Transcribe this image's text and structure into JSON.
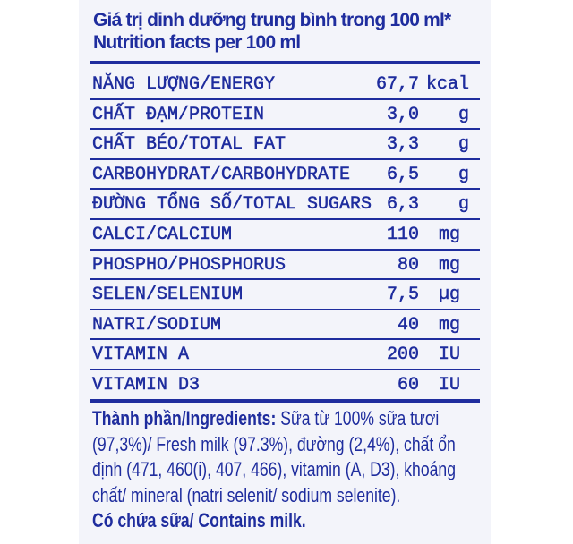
{
  "header": {
    "title_vi": "Giá trị dinh dưỡng trung bình trong 100 ml*",
    "title_en": "Nutrition facts per 100 ml"
  },
  "nutrients": [
    {
      "label": "NĂNG LƯỢNG/ENERGY",
      "value": "67,7",
      "unit": "kcal"
    },
    {
      "label": "CHẤT ĐẠM/PROTEIN",
      "value": "3,0",
      "unit": "g"
    },
    {
      "label": "CHẤT BÉO/TOTAL FAT",
      "value": "3,3",
      "unit": "g"
    },
    {
      "label": "CARBOHYDRAT/CARBOHYDRATE",
      "value": "6,5",
      "unit": "g"
    },
    {
      "label": "ĐƯỜNG TỔNG SỐ/TOTAL SUGARS",
      "value": "6,3",
      "unit": "g"
    },
    {
      "label": "CALCI/CALCIUM",
      "value": "110",
      "unit": "mg"
    },
    {
      "label": "PHOSPHO/PHOSPHORUS",
      "value": "80",
      "unit": "mg"
    },
    {
      "label": "SELEN/SELENIUM",
      "value": "7,5",
      "unit": "µg"
    },
    {
      "label": "NATRI/SODIUM",
      "value": "40",
      "unit": "mg"
    },
    {
      "label": "VITAMIN A",
      "value": "200",
      "unit": "IU"
    },
    {
      "label": "VITAMIN D3",
      "value": "60",
      "unit": "IU"
    }
  ],
  "ingredients": {
    "heading": "Thành phần/Ingredients:",
    "text": "Sữa từ 100% sữa tươi (97,3%)/ Fresh milk (97.3%), đường (2,4%), chất ổn định (471, 460(i), 407, 466), vitamin (A, D3), khoáng chất/ mineral (natri selenit/ sodium selenite).",
    "allergen": "Có chứa sữa/ Contains milk."
  },
  "colors": {
    "ink": "#1f2d9e",
    "background": "#f3f4fa"
  }
}
